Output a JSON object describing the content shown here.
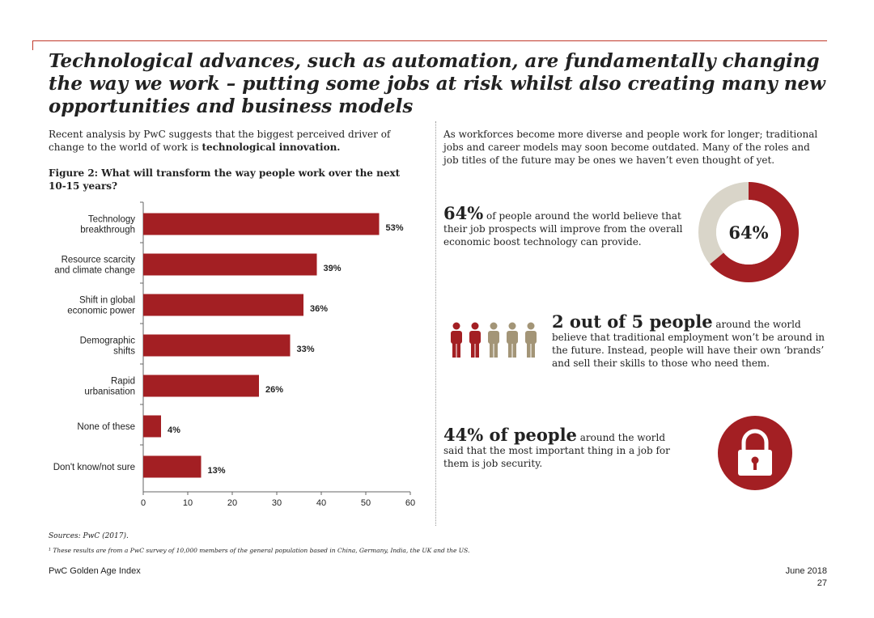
{
  "page": {
    "title": "Technological advances, such as automation, are fundamentally changing the way we work – putting some jobs at risk whilst also creating many new opportunities and business models",
    "intro_pre": "Recent analysis by PwC suggests that the biggest perceived driver of change to the world of work is ",
    "intro_bold": "technological innovation.",
    "figure_title": "Figure 2: What will transform the way people work over the next 10-15 years?",
    "right_intro": "As workforces become more diverse and people work for longer; traditional jobs and career models may soon become outdated. Many of the roles and job titles of the future may be ones we haven’t even thought of yet.",
    "sources": "Sources: PwC (2017).",
    "footnote": "¹ These results are from a PwC survey of 10,000 members of the general population based in China, Germany, India, the UK and the US.",
    "footer_left": "PwC Golden Age Index",
    "footer_date": "June 2018",
    "footer_page": "27"
  },
  "stats": {
    "stat1_big": "64%",
    "stat1_text": " of people around the world believe that their job prospects will improve from the overall economic boost technology can provide.",
    "donut_value": 64,
    "donut_label": "64%",
    "stat2_big": "2 out of 5 people",
    "stat2_text": " around the world believe that traditional employment won’t be around in the future. Instead, people will have their own ‘brands’ and sell their skills to those who need them.",
    "people_highlighted": 2,
    "people_total": 5,
    "stat3_big": "44% of people",
    "stat3_text": " around the world said that the most important thing in a job for them is job security.",
    "lock_icon": "padlock-icon"
  },
  "colors": {
    "accent": "#a31f23",
    "muted": "#a39577",
    "donut_rest": "#d9d5c9"
  },
  "chart_data": {
    "type": "bar",
    "orientation": "horizontal",
    "categories": [
      [
        "Technology",
        "breakthrough"
      ],
      [
        "Resource scarcity",
        "and climate change"
      ],
      [
        "Shift in global",
        "economic power"
      ],
      [
        "Demographic",
        "shifts"
      ],
      [
        "Rapid",
        "urbanisation"
      ],
      [
        "None of these"
      ],
      [
        "Don't know/not sure"
      ]
    ],
    "values": [
      53,
      39,
      36,
      33,
      26,
      4,
      13
    ],
    "value_labels": [
      "53%",
      "39%",
      "36%",
      "33%",
      "26%",
      "4%",
      "13%"
    ],
    "xlim": [
      0,
      60
    ],
    "xticks": [
      0,
      10,
      20,
      30,
      40,
      50,
      60
    ],
    "grid": false
  }
}
